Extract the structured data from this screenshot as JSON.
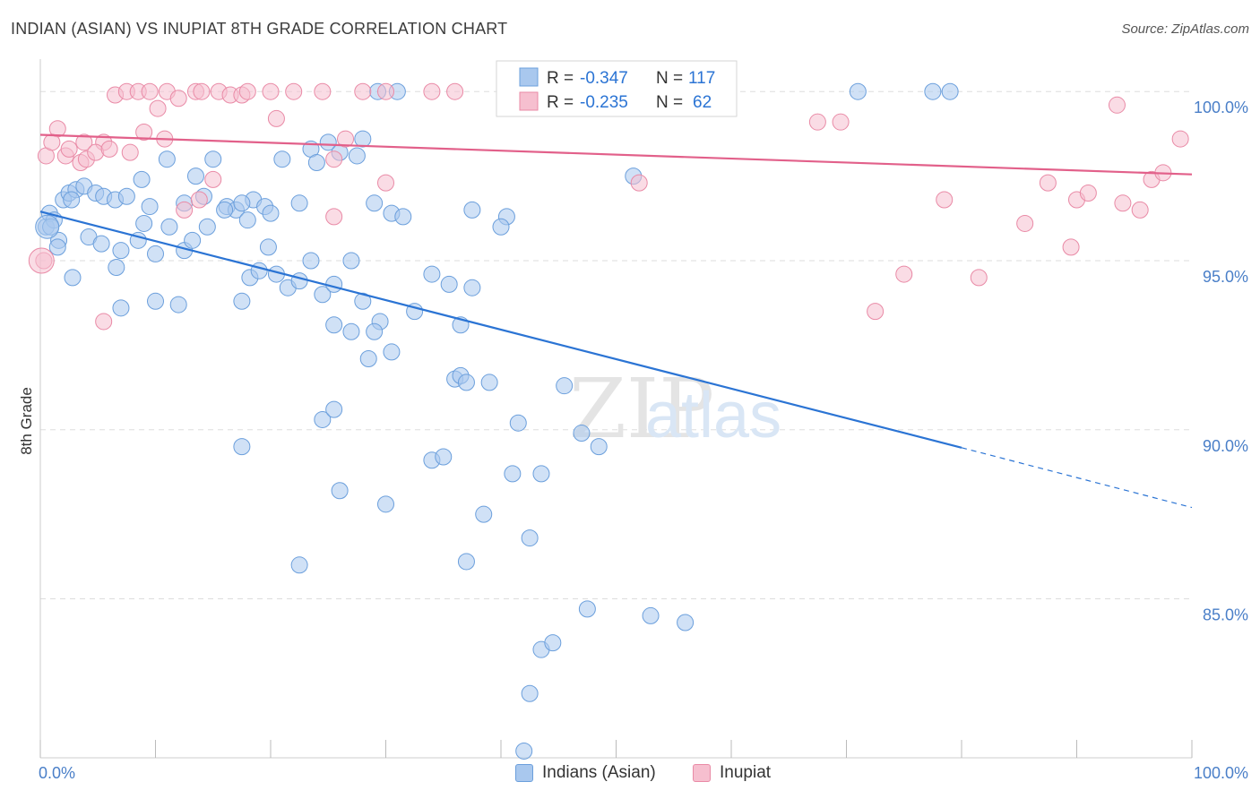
{
  "title": "INDIAN (ASIAN) VS INUPIAT 8TH GRADE CORRELATION CHART",
  "source": "Source: ZipAtlas.com",
  "watermark": {
    "zip": "ZIP",
    "atlas": "atlas"
  },
  "colors": {
    "blue_fill": "#a9c8ee",
    "blue_stroke": "#6b9fdc",
    "blue_line": "#2b74d4",
    "pink_fill": "#f6bfcf",
    "pink_stroke": "#e98aa6",
    "pink_line": "#e2608a",
    "tick_text": "#4a7fc8",
    "grid": "#dddddd"
  },
  "legend": {
    "rows": [
      {
        "r_label": "R = ",
        "r_value": "-0.347",
        "n_label": "N = ",
        "n_value": "117"
      },
      {
        "r_label": "R = ",
        "r_value": "-0.235",
        "n_label": "N = ",
        "n_value": "62"
      }
    ]
  },
  "bottom_legend": {
    "series1": "Indians (Asian)",
    "series2": "Inupiat"
  },
  "chart_data": {
    "type": "scatter",
    "title": "INDIAN (ASIAN) VS INUPIAT 8TH GRADE CORRELATION CHART",
    "xlabel": "",
    "ylabel": "8th Grade",
    "xlim": [
      0,
      100
    ],
    "ylim": [
      80.3,
      100.8
    ],
    "x_tick_labels": [
      "0.0%",
      "100.0%"
    ],
    "y_ticks": [
      85,
      90,
      95,
      100
    ],
    "y_tick_labels": [
      "85.0%",
      "90.0%",
      "95.0%",
      "100.0%"
    ],
    "grid": true,
    "legend_position": "top-center",
    "series": [
      {
        "name": "Indians (Asian)",
        "color": "#a9c8ee",
        "r": -0.347,
        "n": 117,
        "trend": {
          "x0": 0,
          "y0": 96.45,
          "x1": 80,
          "y1": 89.47,
          "dash_to_x": 100,
          "dash_to_y": 87.7
        },
        "points": [
          [
            0.5,
            96.0
          ],
          [
            0.8,
            96.4
          ],
          [
            1.2,
            96.2
          ],
          [
            1.6,
            95.6
          ],
          [
            2.0,
            96.8
          ],
          [
            2.5,
            97.0
          ],
          [
            3.1,
            97.1
          ],
          [
            3.8,
            97.2
          ],
          [
            0.9,
            96.0
          ],
          [
            2.7,
            96.8
          ],
          [
            4.8,
            97.0
          ],
          [
            5.5,
            96.9
          ],
          [
            6.5,
            96.8
          ],
          [
            7.5,
            96.9
          ],
          [
            8.8,
            97.4
          ],
          [
            9.5,
            96.6
          ],
          [
            11.0,
            98.0
          ],
          [
            12.5,
            96.7
          ],
          [
            13.5,
            97.5
          ],
          [
            14.2,
            96.9
          ],
          [
            15.0,
            98.0
          ],
          [
            16.2,
            96.6
          ],
          [
            17.0,
            96.5
          ],
          [
            18.0,
            96.2
          ],
          [
            18.5,
            96.8
          ],
          [
            19.5,
            96.6
          ],
          [
            20.0,
            96.4
          ],
          [
            21.0,
            98.0
          ],
          [
            22.5,
            96.7
          ],
          [
            23.5,
            98.3
          ],
          [
            24.0,
            97.9
          ],
          [
            25.0,
            98.5
          ],
          [
            26.0,
            98.2
          ],
          [
            27.5,
            98.1
          ],
          [
            28.0,
            98.6
          ],
          [
            29.0,
            96.7
          ],
          [
            1.5,
            95.4
          ],
          [
            2.8,
            94.5
          ],
          [
            4.2,
            95.7
          ],
          [
            5.3,
            95.5
          ],
          [
            6.6,
            94.8
          ],
          [
            7.0,
            95.3
          ],
          [
            8.5,
            95.6
          ],
          [
            9.0,
            96.1
          ],
          [
            10.0,
            95.2
          ],
          [
            11.2,
            96.0
          ],
          [
            12.5,
            95.3
          ],
          [
            13.2,
            95.6
          ],
          [
            14.5,
            96.0
          ],
          [
            16.0,
            96.5
          ],
          [
            17.5,
            96.7
          ],
          [
            18.2,
            94.5
          ],
          [
            19.0,
            94.7
          ],
          [
            19.8,
            95.4
          ],
          [
            20.5,
            94.6
          ],
          [
            21.5,
            94.2
          ],
          [
            22.5,
            94.4
          ],
          [
            23.5,
            95.0
          ],
          [
            24.5,
            94.0
          ],
          [
            25.5,
            94.3
          ],
          [
            27.0,
            95.0
          ],
          [
            28.0,
            93.8
          ],
          [
            29.5,
            93.2
          ],
          [
            30.5,
            96.4
          ],
          [
            31.5,
            96.3
          ],
          [
            32.5,
            93.5
          ],
          [
            34.0,
            94.6
          ],
          [
            35.5,
            94.3
          ],
          [
            36.5,
            93.1
          ],
          [
            7.0,
            93.6
          ],
          [
            10.0,
            93.8
          ],
          [
            12.0,
            93.7
          ],
          [
            17.5,
            93.8
          ],
          [
            25.5,
            93.1
          ],
          [
            27.0,
            92.9
          ],
          [
            28.5,
            92.1
          ],
          [
            29.0,
            92.9
          ],
          [
            30.5,
            92.3
          ],
          [
            36.0,
            91.5
          ],
          [
            36.5,
            91.6
          ],
          [
            37.0,
            91.4
          ],
          [
            39.0,
            91.4
          ],
          [
            17.5,
            89.5
          ],
          [
            22.5,
            86.0
          ],
          [
            24.5,
            90.3
          ],
          [
            25.5,
            90.6
          ],
          [
            26.0,
            88.2
          ],
          [
            30.0,
            87.8
          ],
          [
            34.0,
            89.1
          ],
          [
            35.0,
            89.2
          ],
          [
            37.0,
            86.1
          ],
          [
            38.5,
            87.5
          ],
          [
            41.5,
            90.2
          ],
          [
            41.0,
            88.7
          ],
          [
            42.5,
            86.8
          ],
          [
            47.0,
            89.9
          ],
          [
            47.5,
            84.7
          ],
          [
            53.0,
            84.5
          ],
          [
            56.0,
            84.3
          ],
          [
            43.5,
            83.5
          ],
          [
            44.5,
            83.7
          ],
          [
            42.5,
            82.2
          ],
          [
            42.0,
            80.5
          ],
          [
            48.5,
            89.5
          ],
          [
            45.5,
            91.3
          ],
          [
            43.5,
            88.7
          ],
          [
            51.5,
            97.5
          ],
          [
            29.3,
            100.0
          ],
          [
            31.0,
            100.0
          ],
          [
            48.0,
            100.0
          ],
          [
            71.0,
            100.0
          ],
          [
            77.5,
            100.0
          ],
          [
            79.0,
            100.0
          ],
          [
            37.5,
            96.5
          ],
          [
            40.5,
            96.3
          ],
          [
            37.5,
            94.2
          ],
          [
            40.0,
            96.0
          ]
        ]
      },
      {
        "name": "Inupiat",
        "color": "#f6bfcf",
        "r": -0.235,
        "n": 62,
        "trend": {
          "x0": 0,
          "y0": 98.72,
          "x1": 100,
          "y1": 97.55
        },
        "points": [
          [
            0.3,
            95.0
          ],
          [
            1.5,
            98.9
          ],
          [
            2.2,
            98.1
          ],
          [
            3.5,
            97.9
          ],
          [
            4.0,
            98.0
          ],
          [
            5.5,
            98.5
          ],
          [
            6.5,
            99.9
          ],
          [
            7.5,
            100.0
          ],
          [
            8.5,
            100.0
          ],
          [
            9.5,
            100.0
          ],
          [
            10.2,
            99.5
          ],
          [
            11.0,
            100.0
          ],
          [
            12.0,
            99.8
          ],
          [
            13.5,
            100.0
          ],
          [
            14.0,
            100.0
          ],
          [
            15.5,
            100.0
          ],
          [
            16.5,
            99.9
          ],
          [
            17.5,
            99.9
          ],
          [
            18.0,
            100.0
          ],
          [
            20.0,
            100.0
          ],
          [
            20.5,
            99.2
          ],
          [
            22.0,
            100.0
          ],
          [
            24.5,
            100.0
          ],
          [
            25.5,
            98.0
          ],
          [
            26.5,
            98.6
          ],
          [
            28.0,
            100.0
          ],
          [
            30.0,
            100.0
          ],
          [
            34.0,
            100.0
          ],
          [
            36.0,
            100.0
          ],
          [
            0.5,
            98.1
          ],
          [
            1.0,
            98.5
          ],
          [
            2.5,
            98.3
          ],
          [
            3.8,
            98.5
          ],
          [
            4.8,
            98.2
          ],
          [
            6.0,
            98.3
          ],
          [
            7.8,
            98.2
          ],
          [
            9.0,
            98.8
          ],
          [
            10.8,
            98.6
          ],
          [
            12.5,
            96.5
          ],
          [
            13.8,
            96.8
          ],
          [
            15.0,
            97.4
          ],
          [
            25.5,
            96.3
          ],
          [
            5.5,
            93.2
          ],
          [
            30.0,
            97.3
          ],
          [
            52.0,
            97.3
          ],
          [
            67.5,
            99.1
          ],
          [
            69.5,
            99.1
          ],
          [
            72.5,
            93.5
          ],
          [
            75.0,
            94.6
          ],
          [
            78.5,
            96.8
          ],
          [
            81.5,
            94.5
          ],
          [
            85.5,
            96.1
          ],
          [
            87.5,
            97.3
          ],
          [
            89.5,
            95.4
          ],
          [
            90.0,
            96.8
          ],
          [
            91.0,
            97.0
          ],
          [
            94.0,
            96.7
          ],
          [
            95.5,
            96.5
          ],
          [
            96.5,
            97.4
          ],
          [
            97.5,
            97.6
          ],
          [
            99.0,
            98.6
          ],
          [
            93.5,
            99.6
          ]
        ]
      }
    ]
  }
}
